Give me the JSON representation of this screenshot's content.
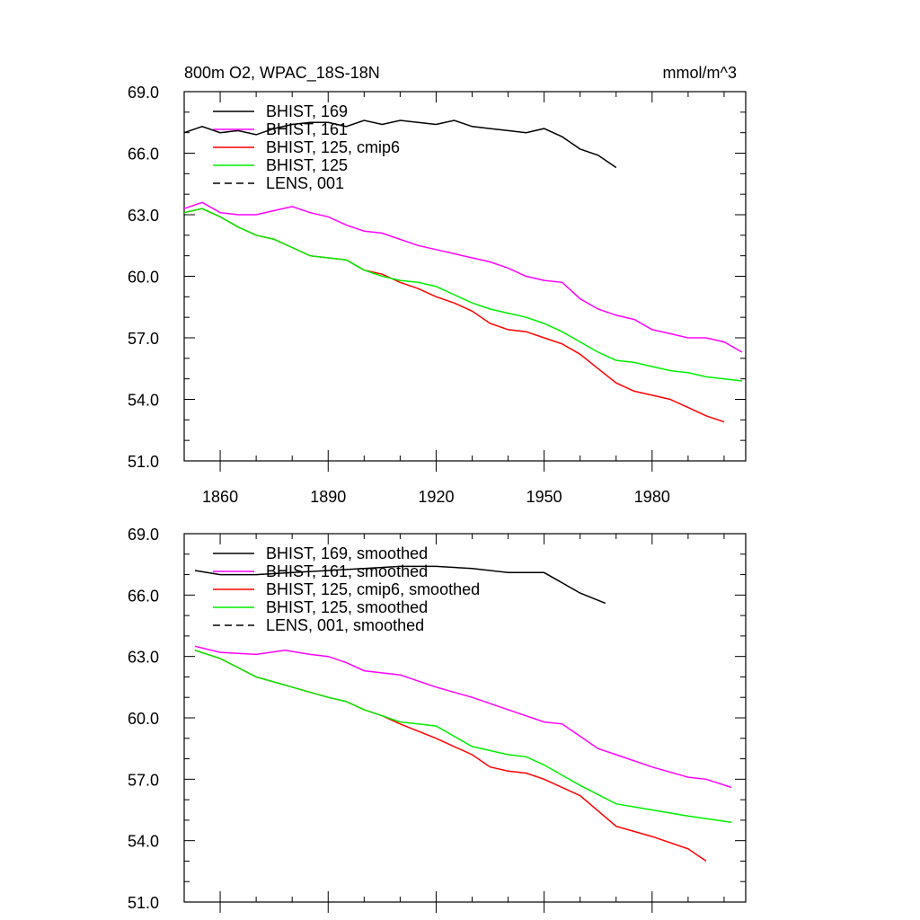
{
  "header": {
    "title": "800m O2, WPAC_18S-18N",
    "units": "mmol/m^3"
  },
  "colors": {
    "bhist_169": "#000000",
    "bhist_161": "#ff00ff",
    "bhist_125_cmip6": "#ff0000",
    "bhist_125": "#00ee00",
    "lens_001": "#000000"
  },
  "chart_data": [
    {
      "type": "line",
      "title": "800m O2, WPAC_18S-18N",
      "units": "mmol/m^3",
      "xlim": [
        1850,
        2006
      ],
      "ylim": [
        51.0,
        69.0
      ],
      "x_ticks": [
        "1860",
        "1890",
        "1920",
        "1950",
        "1980"
      ],
      "y_ticks": [
        "51.0",
        "54.0",
        "57.0",
        "60.0",
        "63.0",
        "66.0",
        "69.0"
      ],
      "grid": false,
      "legend_position": "top-left",
      "legend": [
        "BHIST, 169",
        "BHIST, 161",
        "BHIST, 125, cmip6",
        "BHIST, 125",
        "LENS, 001"
      ],
      "series": [
        {
          "name": "BHIST, 169",
          "color": "#000000",
          "dash": "solid",
          "x": [
            1850,
            1855,
            1860,
            1865,
            1870,
            1875,
            1880,
            1885,
            1890,
            1895,
            1900,
            1905,
            1910,
            1915,
            1920,
            1925,
            1930,
            1935,
            1940,
            1945,
            1950,
            1955,
            1960,
            1965,
            1970
          ],
          "y": [
            67.0,
            67.3,
            67.0,
            67.1,
            66.9,
            67.2,
            67.4,
            67.5,
            67.5,
            67.3,
            67.6,
            67.4,
            67.6,
            67.5,
            67.4,
            67.6,
            67.3,
            67.2,
            67.1,
            67.0,
            67.2,
            66.8,
            66.2,
            65.9,
            65.3
          ]
        },
        {
          "name": "BHIST, 161",
          "color": "#ff00ff",
          "dash": "solid",
          "x": [
            1850,
            1855,
            1860,
            1865,
            1870,
            1875,
            1880,
            1885,
            1890,
            1895,
            1900,
            1905,
            1910,
            1915,
            1920,
            1925,
            1930,
            1935,
            1940,
            1945,
            1950,
            1955,
            1960,
            1965,
            1970,
            1975,
            1980,
            1985,
            1990,
            1995,
            2000,
            2005
          ],
          "y": [
            63.3,
            63.6,
            63.1,
            63.0,
            63.0,
            63.2,
            63.4,
            63.1,
            62.9,
            62.5,
            62.2,
            62.1,
            61.8,
            61.5,
            61.3,
            61.1,
            60.9,
            60.7,
            60.4,
            60.0,
            59.8,
            59.7,
            58.9,
            58.4,
            58.1,
            57.9,
            57.4,
            57.2,
            57.0,
            57.0,
            56.8,
            56.3
          ]
        },
        {
          "name": "BHIST, 125, cmip6",
          "color": "#ff0000",
          "dash": "solid",
          "x": [
            1850,
            1855,
            1860,
            1865,
            1870,
            1875,
            1880,
            1885,
            1890,
            1895,
            1900,
            1905,
            1910,
            1915,
            1920,
            1925,
            1930,
            1935,
            1940,
            1945,
            1950,
            1955,
            1960,
            1965,
            1970,
            1975,
            1980,
            1985,
            1990,
            1995,
            2000
          ],
          "y": [
            63.1,
            63.3,
            62.9,
            62.4,
            62.0,
            61.8,
            61.4,
            61.0,
            60.9,
            60.8,
            60.3,
            60.1,
            59.7,
            59.4,
            59.0,
            58.7,
            58.3,
            57.7,
            57.4,
            57.3,
            57.0,
            56.7,
            56.2,
            55.5,
            54.8,
            54.4,
            54.2,
            54.0,
            53.6,
            53.2,
            52.9
          ]
        },
        {
          "name": "BHIST, 125",
          "color": "#00ee00",
          "dash": "solid",
          "x": [
            1850,
            1855,
            1860,
            1865,
            1870,
            1875,
            1880,
            1885,
            1890,
            1895,
            1900,
            1905,
            1910,
            1915,
            1920,
            1925,
            1930,
            1935,
            1940,
            1945,
            1950,
            1955,
            1960,
            1965,
            1970,
            1975,
            1980,
            1985,
            1990,
            1995,
            2000,
            2005
          ],
          "y": [
            63.1,
            63.3,
            62.9,
            62.4,
            62.0,
            61.8,
            61.4,
            61.0,
            60.9,
            60.8,
            60.3,
            60.0,
            59.8,
            59.7,
            59.5,
            59.1,
            58.7,
            58.4,
            58.2,
            58.0,
            57.7,
            57.3,
            56.8,
            56.3,
            55.9,
            55.8,
            55.6,
            55.4,
            55.3,
            55.1,
            55.0,
            54.9
          ]
        },
        {
          "name": "LENS, 001",
          "color": "#000000",
          "dash": "dashed",
          "x": [],
          "y": []
        }
      ]
    },
    {
      "type": "line",
      "xlim": [
        1850,
        2006
      ],
      "ylim": [
        51.0,
        69.0
      ],
      "x_ticks": [],
      "y_ticks": [
        "51.0",
        "54.0",
        "57.0",
        "60.0",
        "63.0",
        "66.0",
        "69.0"
      ],
      "grid": false,
      "legend_position": "top-left",
      "legend": [
        "BHIST, 169, smoothed",
        "BHIST, 161, smoothed",
        "BHIST, 125, cmip6, smoothed",
        "BHIST, 125, smoothed",
        "LENS, 001, smoothed"
      ],
      "series": [
        {
          "name": "BHIST, 169, smoothed",
          "color": "#000000",
          "dash": "solid",
          "x": [
            1853,
            1860,
            1870,
            1880,
            1890,
            1900,
            1910,
            1920,
            1930,
            1940,
            1950,
            1955,
            1960,
            1967
          ],
          "y": [
            67.2,
            67.0,
            67.0,
            67.1,
            67.2,
            67.3,
            67.4,
            67.4,
            67.3,
            67.1,
            67.1,
            66.6,
            66.1,
            65.6
          ]
        },
        {
          "name": "BHIST, 161, smoothed",
          "color": "#ff00ff",
          "dash": "solid",
          "x": [
            1853,
            1860,
            1870,
            1878,
            1885,
            1890,
            1895,
            1900,
            1910,
            1920,
            1930,
            1940,
            1950,
            1955,
            1960,
            1965,
            1970,
            1980,
            1990,
            1995,
            2002
          ],
          "y": [
            63.5,
            63.2,
            63.1,
            63.3,
            63.1,
            63.0,
            62.7,
            62.3,
            62.1,
            61.5,
            61.0,
            60.4,
            59.8,
            59.7,
            59.1,
            58.5,
            58.2,
            57.6,
            57.1,
            57.0,
            56.6
          ]
        },
        {
          "name": "BHIST, 125, cmip6, smoothed",
          "color": "#ff0000",
          "dash": "solid",
          "x": [
            1853,
            1860,
            1870,
            1880,
            1890,
            1895,
            1900,
            1905,
            1910,
            1920,
            1930,
            1935,
            1940,
            1945,
            1950,
            1960,
            1970,
            1980,
            1990,
            1995
          ],
          "y": [
            63.3,
            62.9,
            62.0,
            61.5,
            61.0,
            60.8,
            60.4,
            60.1,
            59.7,
            59.0,
            58.2,
            57.6,
            57.4,
            57.3,
            57.0,
            56.2,
            54.7,
            54.2,
            53.6,
            53.0
          ]
        },
        {
          "name": "BHIST, 125, smoothed",
          "color": "#00ee00",
          "dash": "solid",
          "x": [
            1853,
            1860,
            1870,
            1880,
            1890,
            1895,
            1900,
            1905,
            1910,
            1915,
            1920,
            1930,
            1940,
            1945,
            1950,
            1960,
            1970,
            1980,
            1990,
            2002
          ],
          "y": [
            63.3,
            62.9,
            62.0,
            61.5,
            61.0,
            60.8,
            60.4,
            60.1,
            59.8,
            59.7,
            59.6,
            58.6,
            58.2,
            58.1,
            57.7,
            56.7,
            55.8,
            55.5,
            55.2,
            54.9
          ]
        },
        {
          "name": "LENS, 001, smoothed",
          "color": "#000000",
          "dash": "dashed",
          "x": [],
          "y": []
        }
      ]
    }
  ]
}
